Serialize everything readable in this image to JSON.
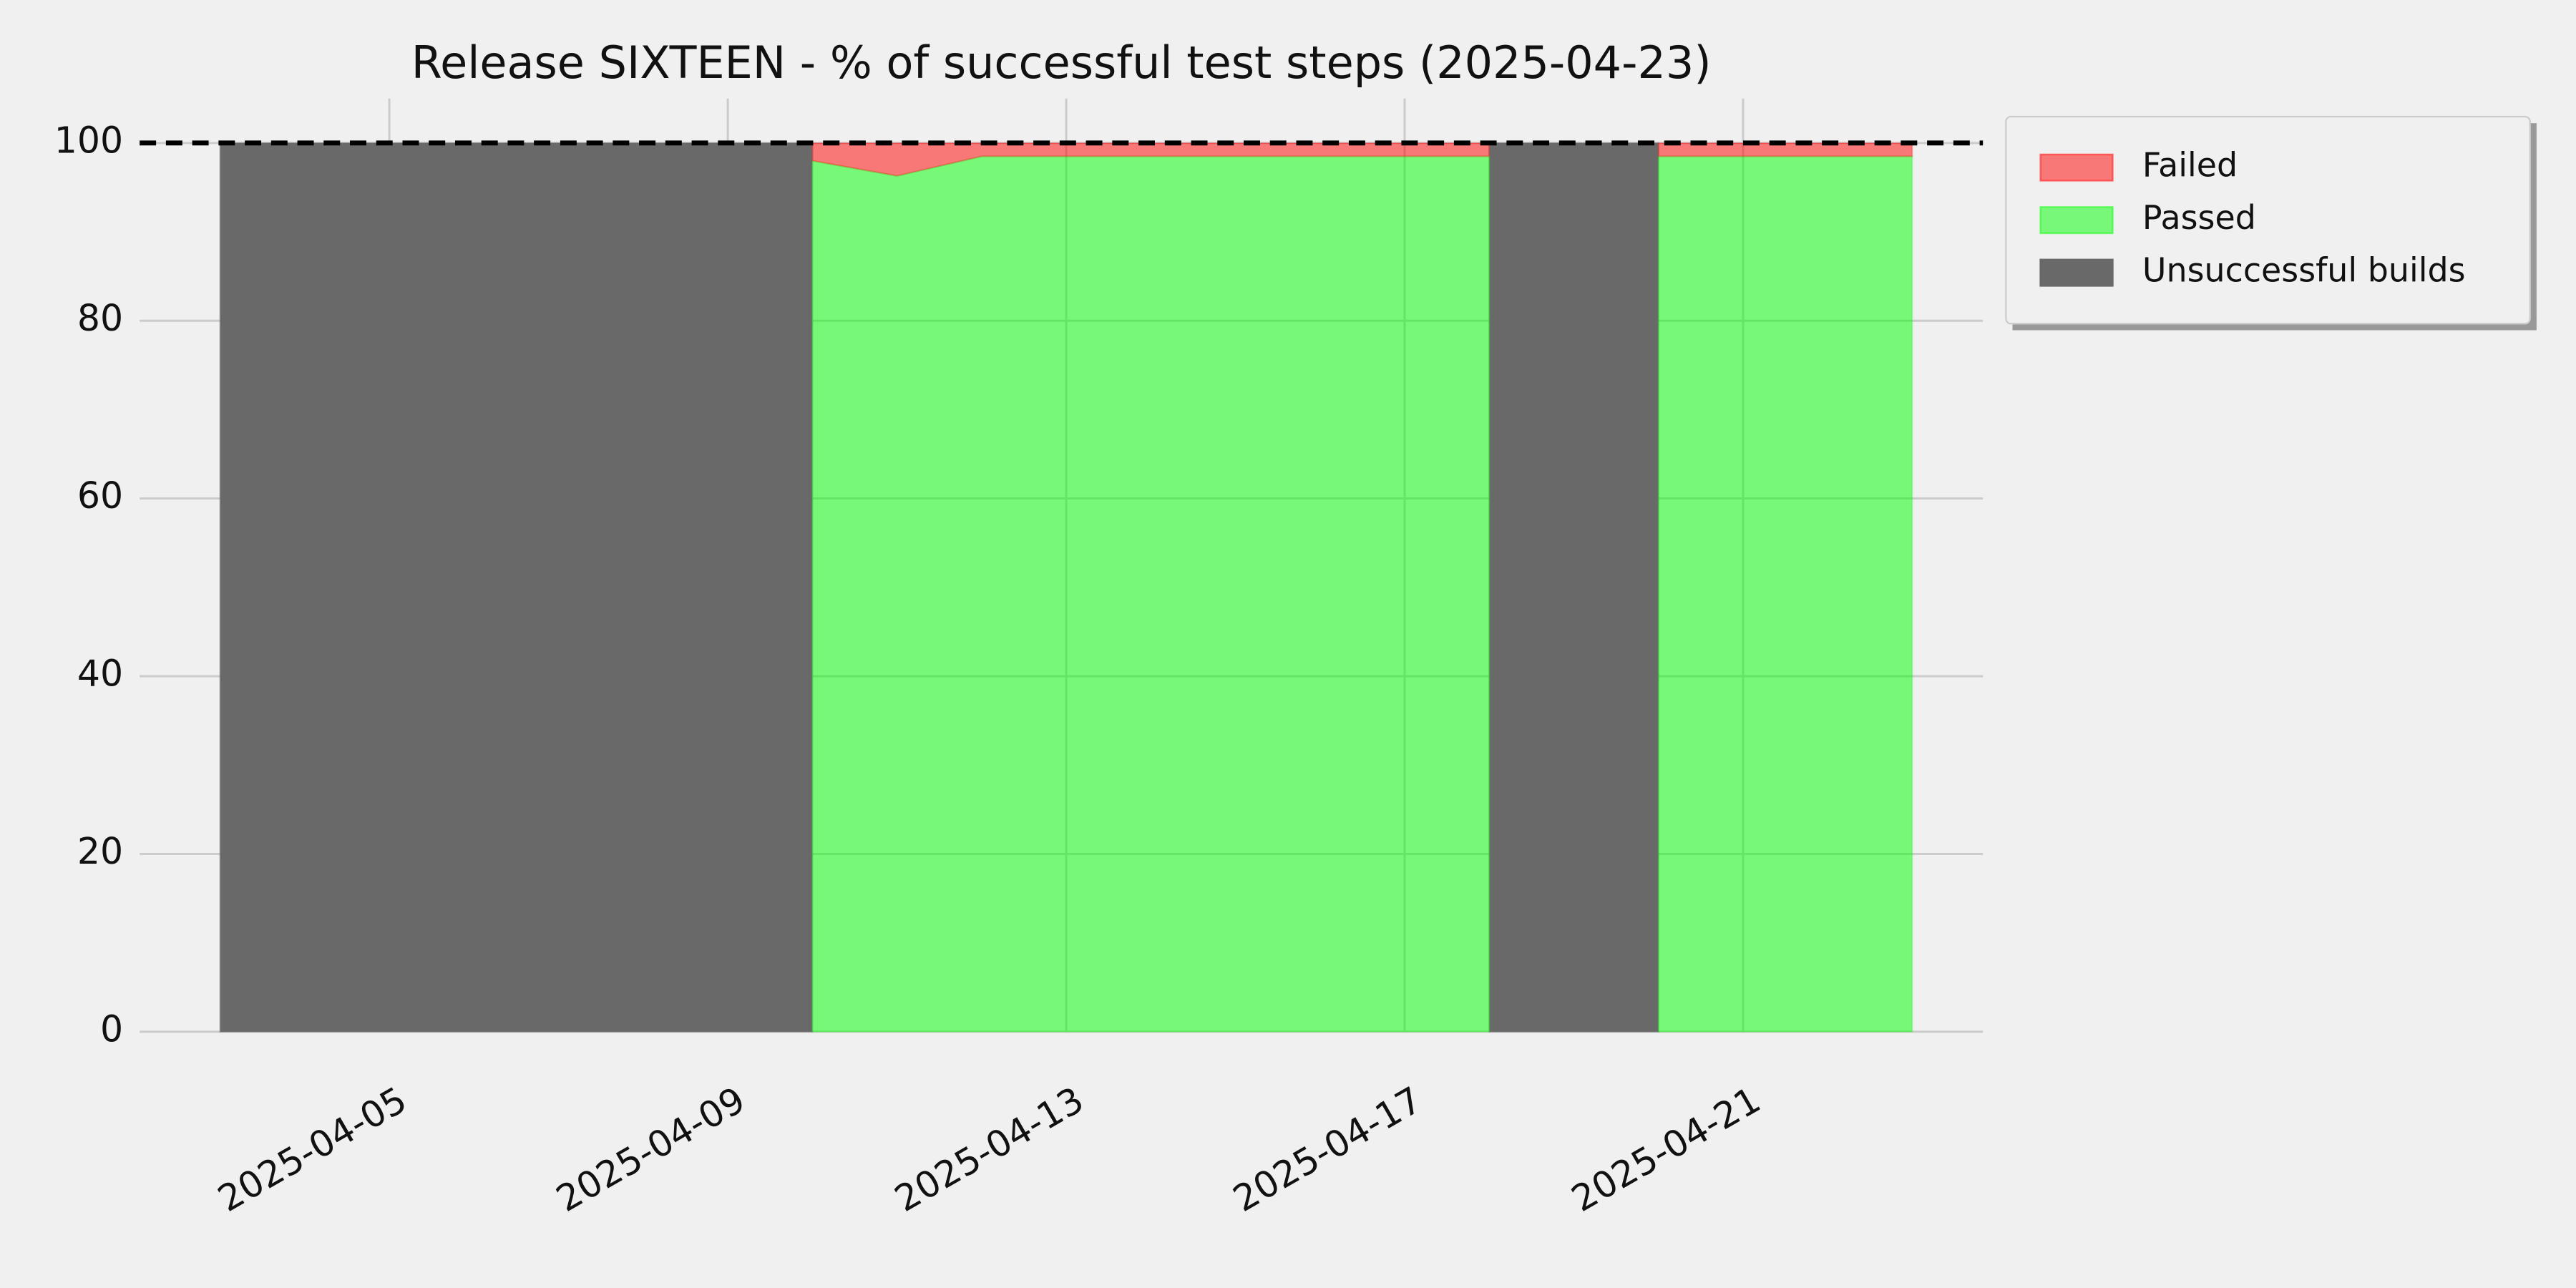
{
  "chart_data": {
    "type": "area",
    "title": "Release SIXTEEN - % of successful test steps (2025-04-23)",
    "x": [
      "2025-04-03",
      "2025-04-04",
      "2025-04-05",
      "2025-04-06",
      "2025-04-07",
      "2025-04-08",
      "2025-04-09",
      "2025-04-10",
      "2025-04-11",
      "2025-04-12",
      "2025-04-13",
      "2025-04-14",
      "2025-04-15",
      "2025-04-16",
      "2025-04-17",
      "2025-04-18",
      "2025-04-19",
      "2025-04-20",
      "2025-04-21",
      "2025-04-22",
      "2025-04-23"
    ],
    "series": [
      {
        "name": "Failed",
        "color": "#ff0000",
        "alpha": 0.5,
        "values": [
          null,
          null,
          null,
          null,
          null,
          null,
          null,
          2,
          3.7,
          1.5,
          1.5,
          1.5,
          1.5,
          1.5,
          1.5,
          1.5,
          null,
          1.5,
          1.5,
          1.5,
          1.5
        ]
      },
      {
        "name": "Passed",
        "color": "#00ff00",
        "alpha": 0.5,
        "values": [
          null,
          null,
          null,
          null,
          null,
          null,
          null,
          98,
          96.3,
          98.5,
          98.5,
          98.5,
          98.5,
          98.5,
          98.5,
          98.5,
          null,
          98.5,
          98.5,
          98.5,
          98.5
        ]
      },
      {
        "name": "Unsuccessful builds",
        "color": "#696969",
        "alpha": 1,
        "values": [
          100,
          100,
          100,
          100,
          100,
          100,
          100,
          100,
          null,
          null,
          null,
          null,
          null,
          null,
          null,
          100,
          100,
          100,
          null,
          null,
          null
        ]
      }
    ],
    "reference_line": 100,
    "xlim": [
      "2025-04-02",
      "2025-04-24"
    ],
    "xticks": [
      "2025-04-05",
      "2025-04-09",
      "2025-04-13",
      "2025-04-17",
      "2025-04-21"
    ],
    "ylim": [
      0,
      105
    ],
    "yticks": [
      0,
      20,
      40,
      60,
      80,
      100
    ],
    "grid": true,
    "legend": "outside-upper-right"
  }
}
